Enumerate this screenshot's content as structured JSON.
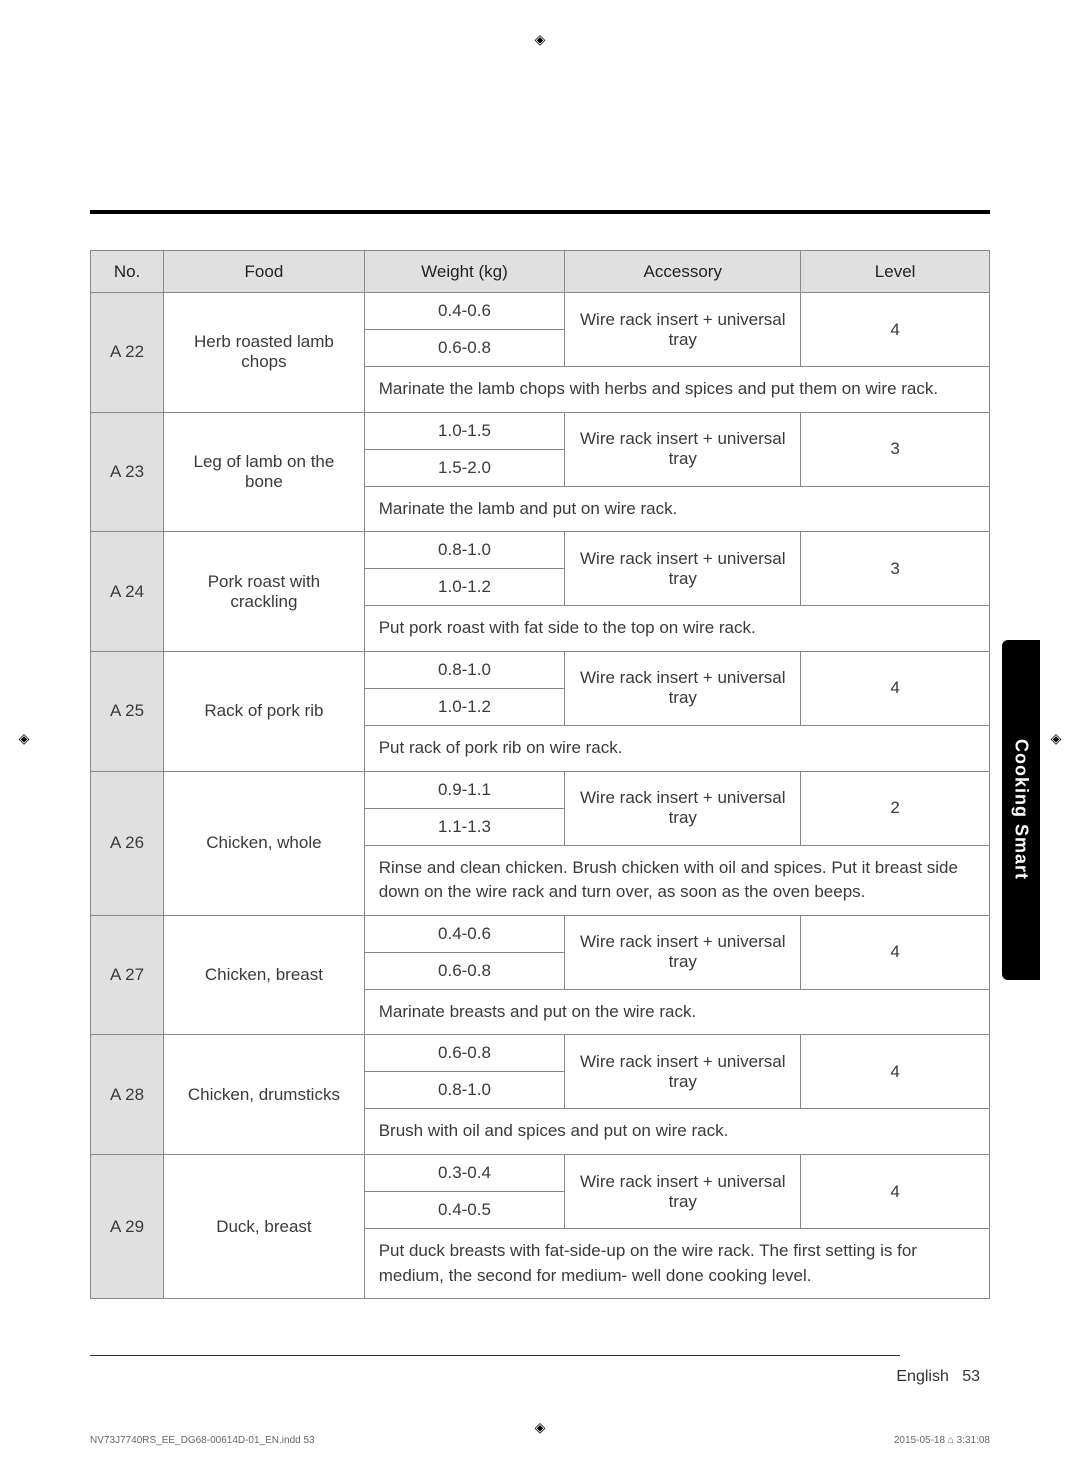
{
  "headers": {
    "no": "No.",
    "food": "Food",
    "weight": "Weight (kg)",
    "accessory": "Accessory",
    "level": "Level"
  },
  "rows": {
    "a22": {
      "no": "A 22",
      "food": "Herb roasted lamb chops",
      "w1": "0.4-0.6",
      "w2": "0.6-0.8",
      "acc": "Wire rack insert + universal tray",
      "level": "4",
      "note": "Marinate the lamb chops with herbs and spices and put them on wire rack."
    },
    "a23": {
      "no": "A 23",
      "food": "Leg of lamb on the bone",
      "w1": "1.0-1.5",
      "w2": "1.5-2.0",
      "acc": "Wire rack insert + universal tray",
      "level": "3",
      "note": "Marinate the lamb and put on wire rack."
    },
    "a24": {
      "no": "A 24",
      "food": "Pork roast with crackling",
      "w1": "0.8-1.0",
      "w2": "1.0-1.2",
      "acc": "Wire rack insert + universal tray",
      "level": "3",
      "note": "Put pork roast with fat side to the top on wire rack."
    },
    "a25": {
      "no": "A 25",
      "food": "Rack of pork rib",
      "w1": "0.8-1.0",
      "w2": "1.0-1.2",
      "acc": "Wire rack insert + universal tray",
      "level": "4",
      "note": "Put rack of pork rib on wire rack."
    },
    "a26": {
      "no": "A 26",
      "food": "Chicken, whole",
      "w1": "0.9-1.1",
      "w2": "1.1-1.3",
      "acc": "Wire rack insert + universal tray",
      "level": "2",
      "note": "Rinse and clean chicken. Brush chicken with oil and spices. Put it breast side down on the wire rack and turn over, as soon as the oven beeps."
    },
    "a27": {
      "no": "A 27",
      "food": "Chicken, breast",
      "w1": "0.4-0.6",
      "w2": "0.6-0.8",
      "acc": "Wire rack insert + universal tray",
      "level": "4",
      "note": "Marinate breasts and put on the wire rack."
    },
    "a28": {
      "no": "A 28",
      "food": "Chicken, drumsticks",
      "w1": "0.6-0.8",
      "w2": "0.8-1.0",
      "acc": "Wire rack insert + universal tray",
      "level": "4",
      "note": "Brush with oil and spices and put on wire rack."
    },
    "a29": {
      "no": "A 29",
      "food": "Duck, breast",
      "w1": "0.3-0.4",
      "w2": "0.4-0.5",
      "acc": "Wire rack insert + universal tray",
      "level": "4",
      "note": "Put duck breasts with fat-side-up on the wire rack. The first setting is for medium, the second for medium- well done cooking level."
    }
  },
  "sidebar": "Cooking Smart",
  "footer": {
    "page_label": "English",
    "page_num": "53",
    "print_left": "NV73J7740RS_EE_DG68-00614D-01_EN.indd   53",
    "print_right": "2015-05-18   ⌂ 3:31:08"
  }
}
